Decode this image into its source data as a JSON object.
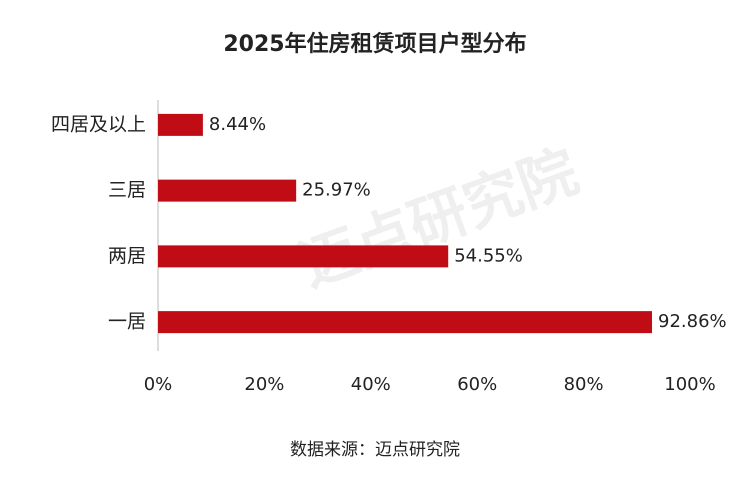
{
  "chart_data": {
    "type": "bar",
    "orientation": "horizontal",
    "title": "2025年住房租赁项目户型分布",
    "categories": [
      "四居及以上",
      "三居",
      "两居",
      "一居"
    ],
    "values": [
      8.44,
      25.97,
      54.55,
      92.86
    ],
    "value_labels": [
      "8.44%",
      "25.97%",
      "54.55%",
      "92.86%"
    ],
    "color": "#c00d15",
    "xlim": [
      0,
      100
    ],
    "xticks": [
      {
        "value": 0,
        "label": "0%"
      },
      {
        "value": 20,
        "label": "20%"
      },
      {
        "value": 40,
        "label": "40%"
      },
      {
        "value": 60,
        "label": "60%"
      },
      {
        "value": 80,
        "label": "80%"
      },
      {
        "value": 100,
        "label": "100%"
      }
    ],
    "grid": false,
    "source": "数据来源：迈点研究院",
    "watermark": "迈点研究院"
  }
}
